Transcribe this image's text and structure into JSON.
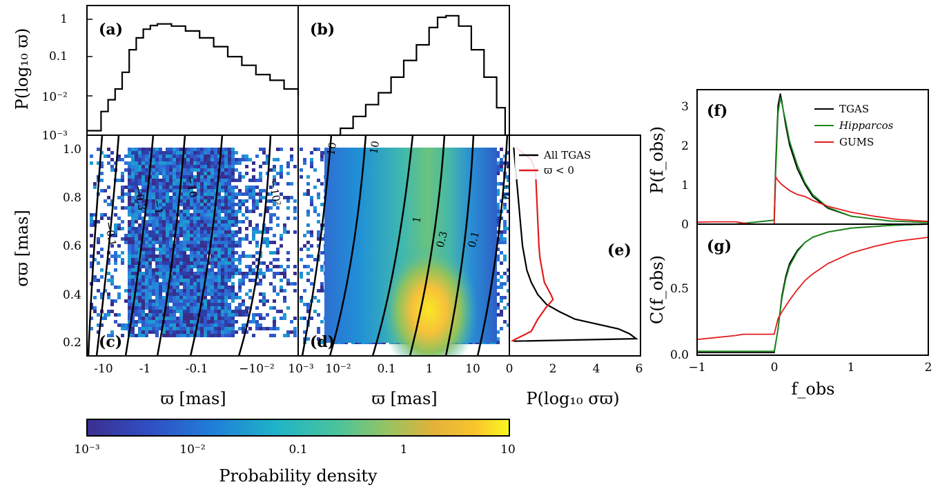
{
  "colors": {
    "tgas": "#000000",
    "negative_parallax": "#e41a1c",
    "hipparcos": "#1a8a1a",
    "gums": "#e41a1c"
  },
  "colormap": "viridis-like (dark blue -> cyan -> green -> orange -> yellow)",
  "labels": {
    "a": "(a)",
    "b": "(b)",
    "c": "(c)",
    "d": "(d)",
    "e": "(e)",
    "f": "(f)",
    "g": "(g)",
    "ylabel_top": "P(log₁₀ ϖ)",
    "ylabel_mid": "σϖ [mas]",
    "xlabel_c": "ϖ [mas]",
    "xlabel_d": "ϖ [mas]",
    "xlabel_e": "P(log₁₀ σϖ)",
    "colorbar_label": "Probability density",
    "ylabel_f": "P(f_obs)",
    "ylabel_g": "C(f_obs)",
    "xlabel_fg": "f_obs"
  },
  "ticks": {
    "top_y": [
      "1",
      "0.1",
      "10⁻²",
      "10⁻³"
    ],
    "mid_y": [
      "1.0",
      "0.8",
      "0.6",
      "0.4",
      "0.2"
    ],
    "c_x": [
      "-10",
      "-1",
      "-0.1",
      "−10⁻²"
    ],
    "d_x": [
      "10⁻³",
      "10⁻²",
      "0.1",
      "1",
      "10"
    ],
    "e_x": [
      "0",
      "2",
      "4",
      "6"
    ],
    "cbar": [
      "10⁻³",
      "10⁻²",
      "0.1",
      "1",
      "10"
    ],
    "f_y": [
      "0",
      "1",
      "2",
      "3"
    ],
    "g_y": [
      "0.0",
      "0.5"
    ],
    "fg_x": [
      "−1",
      "0",
      "1",
      "2"
    ]
  },
  "contour_labels": {
    "c": [
      "−0.1",
      "−0.3",
      "−1",
      "−10",
      "−10²"
    ],
    "d": [
      "10",
      "10",
      "1",
      "0.3",
      "0.1",
      "0.1"
    ]
  },
  "legends": {
    "e": [
      "All TGAS",
      "ϖ < 0"
    ],
    "f": [
      "TGAS",
      "Hipparcos",
      "GUMS"
    ]
  },
  "chart_data": [
    {
      "panel": "a",
      "type": "line",
      "title": "",
      "xlabel": "",
      "ylabel": "P(log10 ϖ)",
      "yscale": "log",
      "ylim": [
        0.001,
        2
      ],
      "xlim": [
        -1.5,
        3
      ],
      "x_meaning": "signed log10 |ϖ| axis (negative parallaxes); x values expressed as -log10|ϖ| positions",
      "series": [
        {
          "name": "All TGAS (ϖ<0)",
          "x": [
            -1.5,
            -1.35,
            -1.2,
            -1.05,
            -0.9,
            -0.75,
            -0.6,
            -0.45,
            -0.3,
            -0.15,
            0,
            0.3,
            0.6,
            0.9,
            1.2,
            1.5,
            1.8,
            2.1,
            2.4,
            2.7,
            3.0
          ],
          "y": [
            0.0013,
            0.0013,
            0.004,
            0.008,
            0.015,
            0.04,
            0.15,
            0.3,
            0.5,
            0.62,
            0.68,
            0.6,
            0.45,
            0.3,
            0.18,
            0.1,
            0.06,
            0.035,
            0.025,
            0.015,
            0.01
          ]
        }
      ]
    },
    {
      "panel": "b",
      "type": "line",
      "title": "",
      "yscale": "log",
      "ylim": [
        0.001,
        2
      ],
      "xlim": [
        -3,
        2
      ],
      "x_meaning": "log10 ϖ [mas] for ϖ>0",
      "series": [
        {
          "name": "All TGAS (ϖ>0)",
          "x": [
            -2.3,
            -2.0,
            -1.7,
            -1.4,
            -1.1,
            -0.8,
            -0.5,
            -0.2,
            0.1,
            0.3,
            0.5,
            0.8,
            1.1,
            1.4,
            1.7,
            1.9
          ],
          "y": [
            0.001,
            0.0015,
            0.003,
            0.006,
            0.012,
            0.03,
            0.08,
            0.2,
            0.55,
            1.0,
            1.1,
            0.6,
            0.15,
            0.03,
            0.005,
            0.001
          ]
        }
      ]
    },
    {
      "panel": "c",
      "type": "heatmap",
      "xlabel": "ϖ [mas]",
      "ylabel": "σϖ [mas]",
      "ylim": [
        0.15,
        1.05
      ],
      "x_ticks": [
        "-10",
        "-1",
        "-0.1",
        "−10⁻²"
      ],
      "description_values": "2D probability density of negative parallaxes vs σϖ with log-spaced contours labelled −0.1, −0.3, −1, −10, −10²"
    },
    {
      "panel": "d",
      "type": "heatmap",
      "xlabel": "ϖ [mas]",
      "ylim": [
        0.15,
        1.05
      ],
      "x_ticks": [
        "10⁻³",
        "10⁻²",
        "0.1",
        "1",
        "10"
      ],
      "peak_density": 10,
      "peak_location": {
        "parallax_mas": 2,
        "sigma_mas": 0.25
      }
    },
    {
      "panel": "e",
      "type": "line",
      "xlabel": "P(log10 σϖ)",
      "xlim": [
        0,
        6
      ],
      "ylim": [
        0.15,
        1.05
      ],
      "series": [
        {
          "name": "All TGAS",
          "sigma": [
            0.21,
            0.22,
            0.24,
            0.26,
            0.28,
            0.3,
            0.33,
            0.36,
            0.4,
            0.45,
            0.5,
            0.6,
            0.7,
            0.8,
            0.9,
            1.0
          ],
          "density": [
            0.2,
            5.8,
            5.5,
            5.0,
            4.0,
            3.0,
            2.3,
            1.7,
            1.3,
            1.0,
            0.8,
            0.6,
            0.5,
            0.4,
            0.3,
            0.2
          ]
        },
        {
          "name": "ϖ < 0",
          "sigma": [
            0.21,
            0.25,
            0.3,
            0.35,
            0.38,
            0.4,
            0.45,
            0.5,
            0.55,
            0.6,
            0.7,
            0.8,
            0.9,
            0.95,
            1.0
          ],
          "density": [
            0.1,
            1.0,
            1.3,
            1.7,
            2.0,
            1.9,
            1.6,
            1.5,
            1.4,
            1.35,
            1.3,
            1.25,
            1.2,
            1.0,
            0.3
          ]
        }
      ]
    },
    {
      "panel": "colorbar",
      "type": "heatmap",
      "label": "Probability density",
      "scale": "log",
      "range": [
        0.001,
        10
      ]
    },
    {
      "panel": "f",
      "type": "line",
      "ylabel": "P(f_obs)",
      "xlim": [
        -1,
        2
      ],
      "ylim": [
        0,
        3.4
      ],
      "series": [
        {
          "name": "TGAS",
          "x": [
            -1,
            -0.5,
            0,
            0.02,
            0.05,
            0.08,
            0.1,
            0.15,
            0.2,
            0.3,
            0.4,
            0.5,
            0.7,
            1.0,
            1.5,
            2.0
          ],
          "y": [
            0,
            0,
            0.1,
            1.5,
            3.0,
            3.3,
            3.1,
            2.5,
            2.0,
            1.4,
            1.0,
            0.7,
            0.4,
            0.2,
            0.08,
            0.04
          ]
        },
        {
          "name": "Hipparcos",
          "x": [
            -1,
            -0.5,
            0,
            0.02,
            0.05,
            0.08,
            0.1,
            0.15,
            0.2,
            0.3,
            0.4,
            0.5,
            0.7,
            1.0,
            1.5,
            2.0
          ],
          "y": [
            0,
            0,
            0.1,
            1.3,
            2.8,
            3.2,
            3.05,
            2.6,
            2.1,
            1.5,
            1.05,
            0.75,
            0.42,
            0.2,
            0.08,
            0.04
          ]
        },
        {
          "name": "GUMS",
          "x": [
            -1,
            -0.8,
            -0.5,
            -0.3,
            0,
            0.02,
            0.05,
            0.1,
            0.2,
            0.3,
            0.4,
            0.5,
            0.7,
            1.0,
            1.3,
            1.6,
            2.0
          ],
          "y": [
            0.05,
            0.06,
            0.06,
            0.0,
            0.0,
            1.2,
            1.1,
            1.0,
            0.85,
            0.75,
            0.7,
            0.6,
            0.45,
            0.3,
            0.2,
            0.12,
            0.07
          ]
        }
      ]
    },
    {
      "panel": "g",
      "type": "line",
      "ylabel": "C(f_obs)",
      "xlabel": "f_obs",
      "xlim": [
        -1,
        2
      ],
      "ylim": [
        0,
        1.0
      ],
      "series": [
        {
          "name": "TGAS",
          "x": [
            -1,
            -0.5,
            0,
            0.05,
            0.1,
            0.15,
            0.2,
            0.3,
            0.4,
            0.5,
            0.7,
            1.0,
            1.5,
            2.0
          ],
          "y": [
            0.02,
            0.02,
            0.02,
            0.2,
            0.45,
            0.6,
            0.7,
            0.8,
            0.86,
            0.9,
            0.94,
            0.97,
            0.99,
            1.0
          ]
        },
        {
          "name": "Hipparcos",
          "x": [
            -1,
            -0.5,
            0,
            0.05,
            0.1,
            0.15,
            0.2,
            0.3,
            0.4,
            0.5,
            0.7,
            1.0,
            1.5,
            2.0
          ],
          "y": [
            0.03,
            0.03,
            0.03,
            0.2,
            0.43,
            0.58,
            0.68,
            0.79,
            0.86,
            0.9,
            0.94,
            0.97,
            0.99,
            1.0
          ]
        },
        {
          "name": "GUMS",
          "x": [
            -1,
            -0.5,
            -0.4,
            0,
            0.05,
            0.1,
            0.2,
            0.3,
            0.4,
            0.5,
            0.7,
            1.0,
            1.3,
            1.6,
            2.0
          ],
          "y": [
            0.12,
            0.15,
            0.16,
            0.16,
            0.28,
            0.33,
            0.42,
            0.5,
            0.57,
            0.62,
            0.7,
            0.78,
            0.83,
            0.87,
            0.9
          ]
        }
      ]
    }
  ]
}
